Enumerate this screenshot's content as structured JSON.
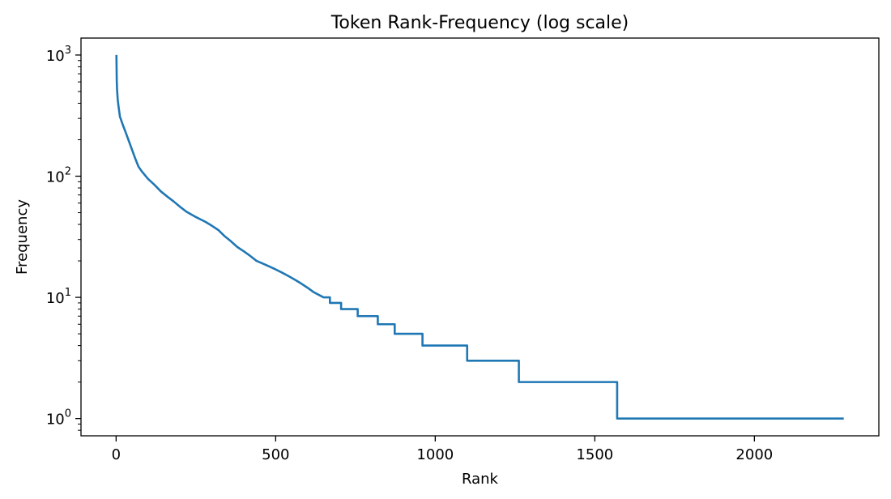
{
  "chart_data": {
    "type": "line",
    "title": "Token Rank-Frequency (log scale)",
    "xlabel": "Rank",
    "ylabel": "Frequency",
    "xlim": [
      -110,
      2390
    ],
    "ylim": [
      0.72,
      1380
    ],
    "yscale": "log",
    "grid": false,
    "legend": "none",
    "line_color": "#1f77b4",
    "x_ticks": [
      {
        "value": 0,
        "label": "0"
      },
      {
        "value": 500,
        "label": "500"
      },
      {
        "value": 1000,
        "label": "1000"
      },
      {
        "value": 1500,
        "label": "1500"
      },
      {
        "value": 2000,
        "label": "2000"
      }
    ],
    "y_ticks": [
      {
        "value": 1,
        "base": "10",
        "exp": "0"
      },
      {
        "value": 10,
        "base": "10",
        "exp": "1"
      },
      {
        "value": 100,
        "base": "10",
        "exp": "2"
      },
      {
        "value": 1000,
        "base": "10",
        "exp": "3"
      }
    ],
    "series": [
      {
        "points": [
          [
            1,
            1000
          ],
          [
            2,
            620
          ],
          [
            3,
            520
          ],
          [
            5,
            430
          ],
          [
            8,
            370
          ],
          [
            12,
            310
          ],
          [
            20,
            270
          ],
          [
            30,
            230
          ],
          [
            40,
            195
          ],
          [
            50,
            165
          ],
          [
            60,
            140
          ],
          [
            70,
            120
          ],
          [
            80,
            110
          ],
          [
            100,
            95
          ],
          [
            120,
            85
          ],
          [
            140,
            75
          ],
          [
            160,
            68
          ],
          [
            180,
            62
          ],
          [
            200,
            56
          ],
          [
            220,
            51
          ],
          [
            250,
            46
          ],
          [
            280,
            42
          ],
          [
            300,
            39
          ],
          [
            320,
            36
          ],
          [
            340,
            32
          ],
          [
            360,
            29
          ],
          [
            380,
            26
          ],
          [
            400,
            24
          ],
          [
            420,
            22
          ],
          [
            440,
            20
          ],
          [
            460,
            19
          ],
          [
            480,
            18
          ],
          [
            500,
            17
          ],
          [
            520,
            16
          ],
          [
            540,
            15
          ],
          [
            560,
            14
          ],
          [
            580,
            13
          ],
          [
            600,
            12
          ],
          [
            620,
            11
          ],
          [
            650,
            10
          ],
          [
            670,
            10
          ],
          [
            670,
            9
          ],
          [
            705,
            9
          ],
          [
            705,
            8
          ],
          [
            757,
            8
          ],
          [
            757,
            7
          ],
          [
            820,
            7
          ],
          [
            820,
            6
          ],
          [
            873,
            6
          ],
          [
            873,
            5
          ],
          [
            960,
            5
          ],
          [
            960,
            4
          ],
          [
            1100,
            4
          ],
          [
            1100,
            3
          ],
          [
            1262,
            3
          ],
          [
            1262,
            2
          ],
          [
            1570,
            2
          ],
          [
            1570,
            1
          ],
          [
            2280,
            1
          ]
        ]
      }
    ]
  }
}
